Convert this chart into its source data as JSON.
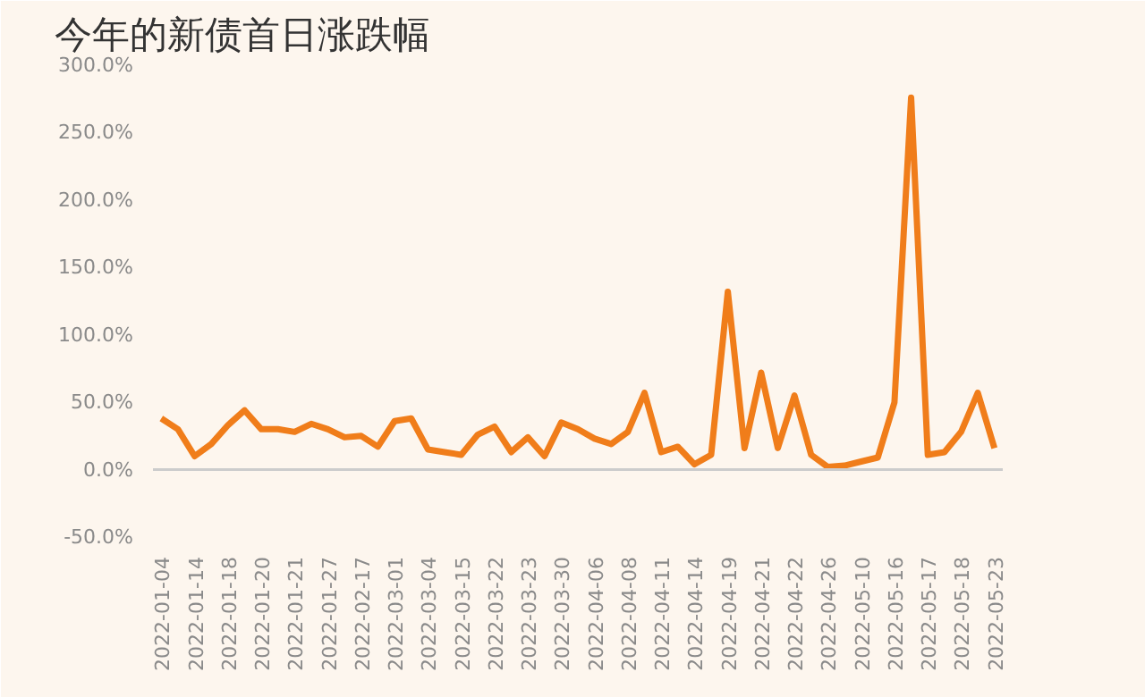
{
  "chart_data": {
    "type": "line",
    "title": "今年的新债首日涨跌幅",
    "categories": [
      "2022-01-04",
      null,
      "2022-01-14",
      null,
      "2022-01-18",
      null,
      "2022-01-20",
      null,
      "2022-01-21",
      null,
      "2022-01-27",
      null,
      "2022-02-17",
      null,
      "2022-03-01",
      null,
      "2022-03-04",
      null,
      "2022-03-15",
      null,
      "2022-03-22",
      null,
      "2022-03-23",
      null,
      "2022-03-30",
      null,
      "2022-04-06",
      null,
      "2022-04-08",
      null,
      "2022-04-11",
      null,
      "2022-04-14",
      null,
      "2022-04-19",
      null,
      "2022-04-21",
      null,
      "2022-04-22",
      null,
      "2022-04-26",
      null,
      "2022-05-10",
      null,
      "2022-05-16",
      null,
      "2022-05-17",
      null,
      "2022-05-18",
      null,
      "2022-05-23"
    ],
    "series": [
      {
        "color": "#f07d1a",
        "values": [
          38,
          30,
          10,
          19,
          33,
          44,
          30,
          30,
          28,
          34,
          30,
          24,
          25,
          17,
          36,
          38,
          15,
          13,
          11,
          26,
          32,
          13,
          24,
          10,
          35,
          30,
          23,
          19,
          28,
          57,
          13,
          17,
          4,
          11,
          132,
          16,
          72,
          16,
          55,
          11,
          2,
          3,
          6,
          9,
          50,
          276,
          11,
          13,
          28,
          57,
          16
        ]
      }
    ],
    "ylim": [
      -50,
      300
    ],
    "yticks": [
      {
        "value": -50,
        "label": "-50.0%"
      },
      {
        "value": 0,
        "label": "0.0%"
      },
      {
        "value": 50,
        "label": "50.0%"
      },
      {
        "value": 100,
        "label": "100.0%"
      },
      {
        "value": 150,
        "label": "150.0%"
      },
      {
        "value": 200,
        "label": "200.0%"
      },
      {
        "value": 250,
        "label": "250.0%"
      },
      {
        "value": 300,
        "label": "300.0%"
      }
    ],
    "ref_lines": [
      {
        "axis": "y",
        "value": 0,
        "color": "#cccccc"
      }
    ],
    "marker": "none",
    "line_style": "solid"
  }
}
